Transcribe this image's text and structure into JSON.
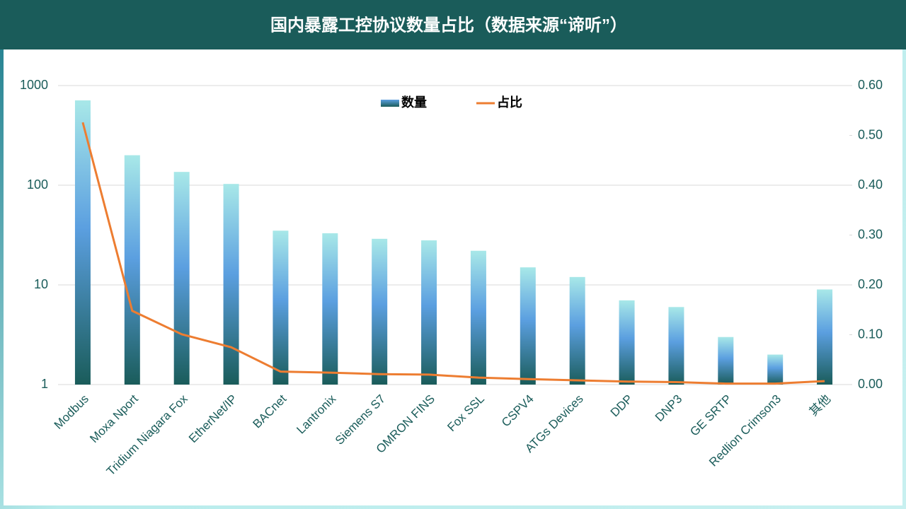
{
  "chart_data": {
    "type": "bar-line",
    "title": "国内暴露工控协议数量占比（数据来源“谛听”）",
    "categories": [
      "Modbus",
      "Moxa Nport",
      "Tridium Niagara Fox",
      "EtherNet/IP",
      "BACnet",
      "Lantronix",
      "Siemens S7",
      "OMRON FINS",
      "Fox SSL",
      "CSPV4",
      "ATGs Devices",
      "DDP",
      "DNP3",
      "GE SRTP",
      "Redlion Crimson3",
      "其他"
    ],
    "series": [
      {
        "name": "数量",
        "type": "bar",
        "color": "#5b9fe0",
        "values": [
          710,
          200,
          136,
          103,
          35,
          33,
          29,
          28,
          22,
          15,
          12,
          7,
          6,
          3,
          2,
          9
        ]
      },
      {
        "name": "占比",
        "type": "line",
        "axis": "y2",
        "color": "#ed7d31",
        "values": [
          0.526,
          0.148,
          0.101,
          0.075,
          0.026,
          0.024,
          0.021,
          0.02,
          0.014,
          0.011,
          0.0085,
          0.006,
          0.005,
          0.002,
          0.002,
          0.007
        ]
      }
    ],
    "ylim": [
      1,
      1000
    ],
    "log_scale": true,
    "yticks": [
      1,
      10,
      100,
      1000
    ],
    "y2lim": [
      0,
      0.6
    ],
    "y2ticks": [
      {
        "value": 0,
        "label": "0.00"
      },
      {
        "value": 0.1,
        "label": "0.10"
      },
      {
        "value": 0.2,
        "label": "0.20"
      },
      {
        "value": 0.3,
        "label": "0.30"
      },
      {
        "value": 0.4,
        "label": "0.40"
      },
      {
        "value": 0.5,
        "label": "0.50"
      },
      {
        "value": 0.6,
        "label": "0.60"
      }
    ],
    "grid": true,
    "legend": "top"
  }
}
